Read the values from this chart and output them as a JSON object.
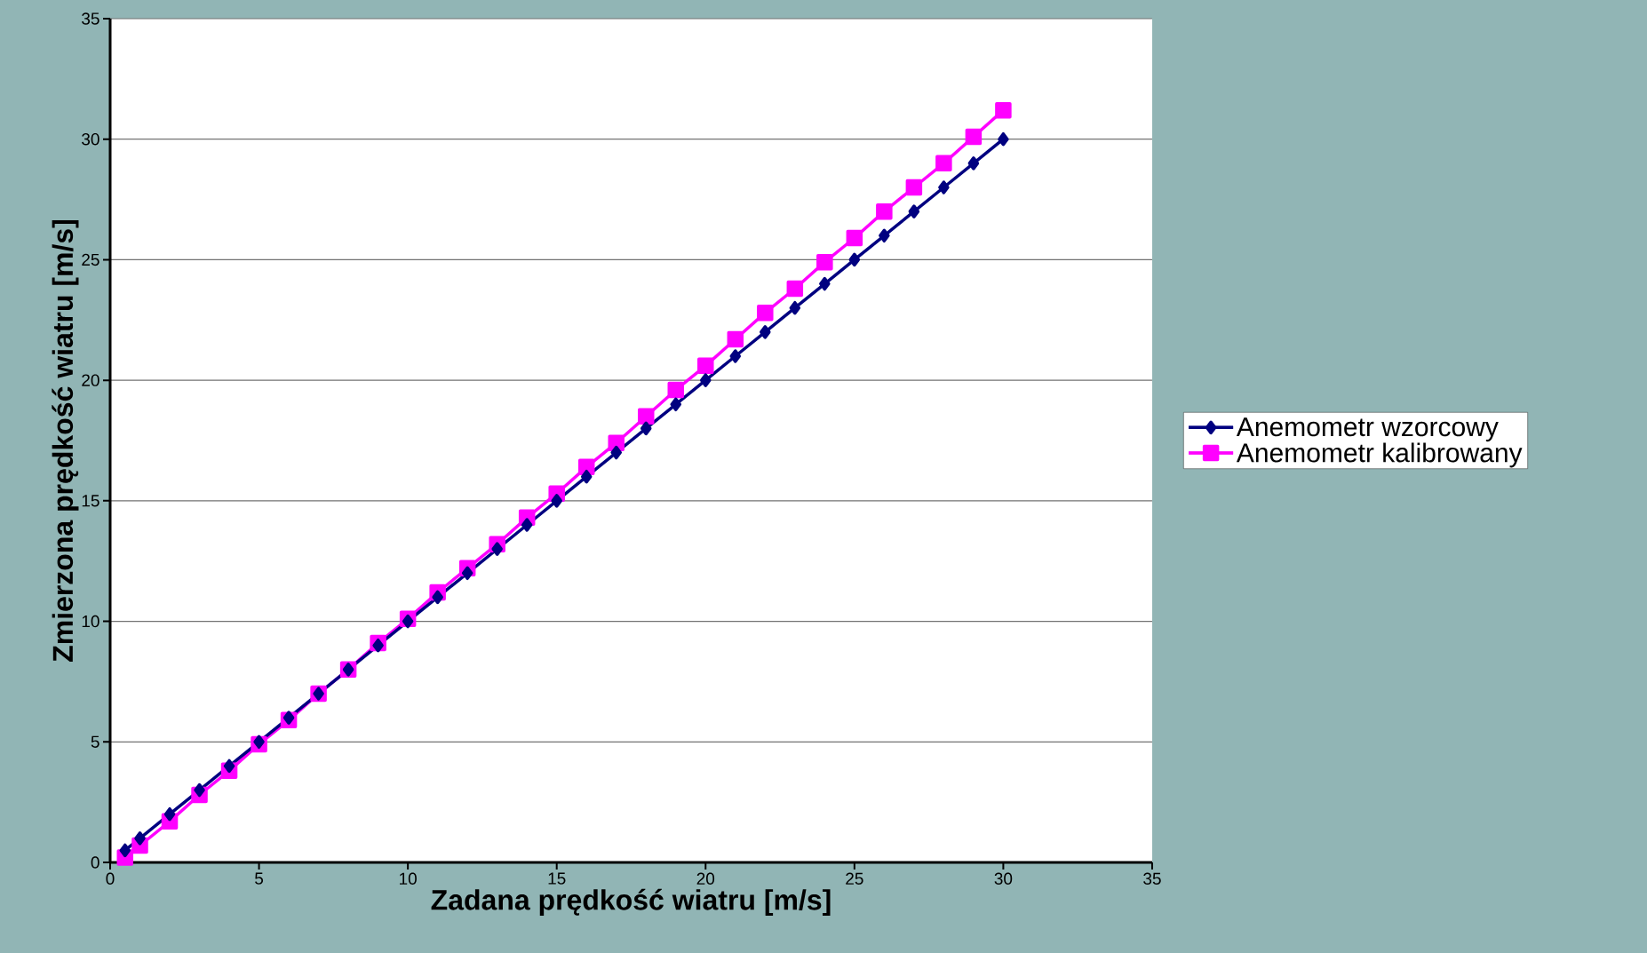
{
  "chart_data": {
    "type": "line",
    "xlabel": "Zadana prędkość wiatru [m/s]",
    "ylabel": "Zmierzona prędkość wiatru [m/s]",
    "x": [
      0.5,
      1,
      2,
      3,
      4,
      5,
      6,
      7,
      8,
      9,
      10,
      11,
      12,
      13,
      14,
      15,
      16,
      17,
      18,
      19,
      20,
      21,
      22,
      23,
      24,
      25,
      26,
      27,
      28,
      29,
      30
    ],
    "series": [
      {
        "name": "Anemometr wzorcowy",
        "color": "#000080",
        "marker": "diamond",
        "values": [
          0.5,
          1,
          2,
          3,
          4,
          5,
          6,
          7,
          8,
          9,
          10,
          11,
          12,
          13,
          14,
          15,
          16,
          17,
          18,
          19,
          20,
          21,
          22,
          23,
          24,
          25,
          26,
          27,
          28,
          29,
          30
        ]
      },
      {
        "name": "Anemometr kalibrowany",
        "color": "#ff00ff",
        "marker": "square",
        "values": [
          0.2,
          0.7,
          1.7,
          2.8,
          3.8,
          4.9,
          5.9,
          7.0,
          8.0,
          9.1,
          10.1,
          11.2,
          12.2,
          13.2,
          14.3,
          15.3,
          16.4,
          17.4,
          18.5,
          19.6,
          20.6,
          21.7,
          22.8,
          23.8,
          24.9,
          25.9,
          27.0,
          28.0,
          29.0,
          30.1,
          31.2
        ]
      }
    ],
    "xlim": [
      0,
      35
    ],
    "ylim": [
      0,
      35
    ],
    "xticks": [
      0,
      5,
      10,
      15,
      20,
      25,
      30,
      35
    ],
    "yticks": [
      0,
      5,
      10,
      15,
      20,
      25,
      30,
      35
    ],
    "grid": "y",
    "legend": "right",
    "line_style": "solid"
  }
}
